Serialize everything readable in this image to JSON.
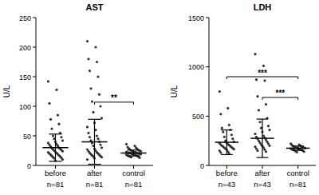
{
  "chart_data": [
    {
      "type": "scatter",
      "title": "AST",
      "y_label": "U/L",
      "categories": [
        "before",
        "after",
        "control"
      ],
      "sample_sizes": [
        "n=81",
        "n=81",
        "n=81"
      ],
      "ylim": [
        0,
        250
      ],
      "yticks": [
        0,
        50,
        100,
        150,
        200,
        250
      ],
      "color": "#333333",
      "points": [
        [
          142,
          128,
          105,
          85,
          78,
          70,
          62,
          55,
          50,
          48,
          45,
          42,
          40,
          38,
          36,
          35,
          33,
          32,
          30,
          29,
          28,
          27,
          26,
          25,
          24,
          23,
          22,
          21,
          20,
          19,
          18,
          17,
          16,
          15,
          14,
          13,
          12,
          10,
          8
        ],
        [
          210,
          200,
          180,
          175,
          160,
          150,
          130,
          120,
          108,
          100,
          90,
          80,
          72,
          65,
          60,
          55,
          50,
          48,
          45,
          42,
          40,
          38,
          35,
          33,
          30,
          28,
          27,
          25,
          24,
          22,
          21,
          20,
          19,
          18,
          17,
          16,
          15,
          14,
          12,
          10
        ],
        [
          36,
          33,
          31,
          30,
          29,
          28,
          27,
          26,
          25,
          25,
          24,
          24,
          23,
          23,
          22,
          22,
          22,
          21,
          21,
          21,
          20,
          20,
          20,
          19,
          19,
          19,
          18,
          18,
          17,
          17,
          16,
          16,
          15,
          15,
          14,
          13
        ]
      ],
      "mean": [
        30,
        40,
        21
      ],
      "sd": [
        23,
        38,
        5
      ],
      "comparisons": [
        {
          "from": 1,
          "to": 2,
          "label": "**",
          "y": 107
        }
      ]
    },
    {
      "type": "scatter",
      "title": "LDH",
      "y_label": "U/L",
      "categories": [
        "before",
        "after",
        "control"
      ],
      "sample_sizes": [
        "n=43",
        "n=43",
        "n=81"
      ],
      "ylim": [
        0,
        1500
      ],
      "yticks": [
        0,
        500,
        1000,
        1500
      ],
      "color": "#333333",
      "points": [
        [
          750,
          580,
          520,
          410,
          380,
          360,
          340,
          310,
          290,
          270,
          250,
          240,
          230,
          225,
          215,
          210,
          205,
          200,
          195,
          190,
          185,
          180,
          175,
          170,
          165,
          160,
          150,
          140,
          130,
          120
        ],
        [
          1130,
          1010,
          870,
          860,
          700,
          620,
          560,
          480,
          440,
          400,
          380,
          360,
          340,
          320,
          300,
          290,
          280,
          270,
          260,
          250,
          240,
          230,
          220,
          210,
          200,
          195,
          190,
          180,
          170,
          160,
          150,
          140
        ],
        [
          220,
          210,
          205,
          200,
          195,
          190,
          188,
          185,
          182,
          180,
          178,
          175,
          172,
          170,
          168,
          165,
          162,
          160,
          158,
          155,
          150,
          145,
          140,
          135
        ]
      ],
      "mean": [
        235,
        275,
        175
      ],
      "sd": [
        125,
        195,
        22
      ],
      "comparisons": [
        {
          "from": 0,
          "to": 2,
          "label": "***",
          "y": 900
        },
        {
          "from": 1,
          "to": 2,
          "label": "***",
          "y": 690
        }
      ]
    }
  ]
}
